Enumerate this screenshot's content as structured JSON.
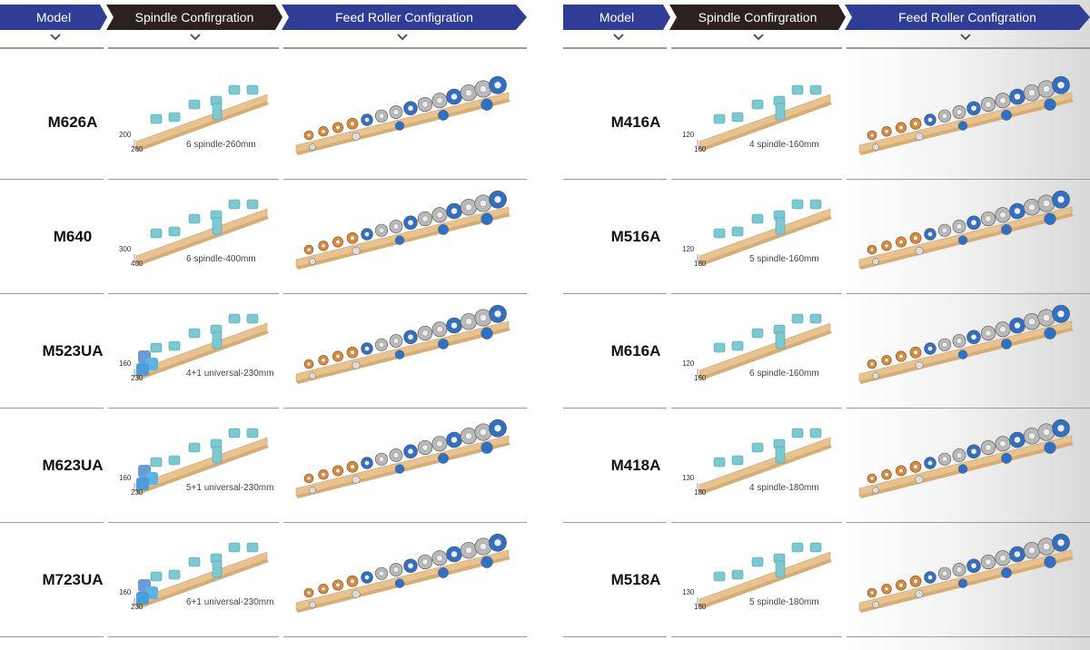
{
  "headers": {
    "model": "Model",
    "spindle": "Spindle Confirgration",
    "feed": "Feed Roller Configration"
  },
  "left_rows": [
    {
      "model": "M626A",
      "height": "200",
      "width": "260",
      "spec": "6 spindle-260mm"
    },
    {
      "model": "M640",
      "height": "300",
      "width": "400",
      "spec": "6 spindle-400mm"
    },
    {
      "model": "M523UA",
      "height": "160",
      "width": "230",
      "spec": "4+1 universal-230mm"
    },
    {
      "model": "M623UA",
      "height": "160",
      "width": "230",
      "spec": "5+1 universal-230mm"
    },
    {
      "model": "M723UA",
      "height": "160",
      "width": "230",
      "spec": "6+1 universal-230mm"
    }
  ],
  "right_rows": [
    {
      "model": "M416A",
      "height": "120",
      "width": "160",
      "spec": "4 spindle-160mm"
    },
    {
      "model": "M516A",
      "height": "120",
      "width": "160",
      "spec": "5 spindle-160mm"
    },
    {
      "model": "M616A",
      "height": "120",
      "width": "160",
      "spec": "6 spindle-160mm"
    },
    {
      "model": "M418A",
      "height": "130",
      "width": "180",
      "spec": "4 spindle-180mm"
    },
    {
      "model": "M518A",
      "height": "130",
      "width": "180",
      "spec": "5 spindle-180mm"
    }
  ],
  "colors": {
    "header_blue": "#2f3d97",
    "header_dark": "#2b2220",
    "spindle_cyan": "#7ec8d0",
    "roller_blue": "#2f6fc4",
    "roller_orange": "#e08a2e",
    "roller_gray": "#8a8a8a",
    "beam": "#e8c28f"
  },
  "icons": {
    "chevron": "chevron-down-icon"
  }
}
